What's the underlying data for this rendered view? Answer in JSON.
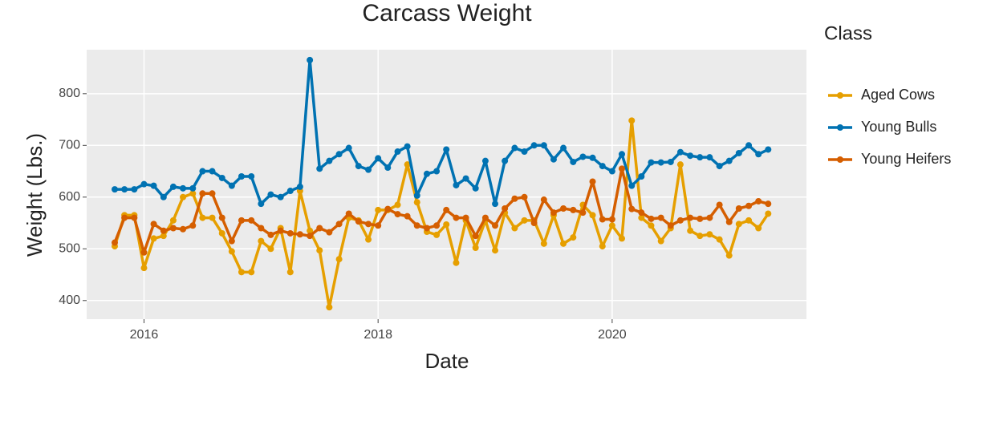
{
  "chart_data": {
    "type": "line",
    "title": "Carcass Weight",
    "x_label": "Date",
    "y_label": "Weight (Lbs.)",
    "legend_title": "Class",
    "legend": "right",
    "grid": true,
    "xlim": [
      2015.51,
      2021.66
    ],
    "xticks": [
      2016,
      2018,
      2020
    ],
    "ylim": [
      364,
      885
    ],
    "yticks": [
      400,
      500,
      600,
      700,
      800
    ],
    "x": [
      2015.75,
      2015.833,
      2015.917,
      2016,
      2016.083,
      2016.167,
      2016.25,
      2016.333,
      2016.417,
      2016.5,
      2016.583,
      2016.667,
      2016.75,
      2016.833,
      2016.917,
      2017,
      2017.083,
      2017.167,
      2017.25,
      2017.333,
      2017.417,
      2017.5,
      2017.583,
      2017.667,
      2017.75,
      2017.833,
      2017.917,
      2018,
      2018.083,
      2018.167,
      2018.25,
      2018.333,
      2018.417,
      2018.5,
      2018.583,
      2018.667,
      2018.75,
      2018.833,
      2018.917,
      2019,
      2019.083,
      2019.167,
      2019.25,
      2019.333,
      2019.417,
      2019.5,
      2019.583,
      2019.667,
      2019.75,
      2019.833,
      2019.917,
      2020,
      2020.083,
      2020.167,
      2020.25,
      2020.333,
      2020.417,
      2020.5,
      2020.583,
      2020.667,
      2020.75,
      2020.833,
      2020.917,
      2021,
      2021.083,
      2021.167,
      2021.25,
      2021.333
    ],
    "series": [
      {
        "name": "Aged Cows",
        "color": "#E69F00",
        "values": [
          505,
          565,
          565,
          463,
          520,
          525,
          555,
          600,
          607,
          560,
          560,
          530,
          495,
          455,
          455,
          515,
          500,
          540,
          455,
          612,
          535,
          497,
          387,
          480,
          560,
          555,
          518,
          575,
          575,
          585,
          663,
          590,
          533,
          527,
          547,
          473,
          555,
          502,
          555,
          497,
          570,
          540,
          555,
          555,
          510,
          565,
          510,
          522,
          585,
          565,
          505,
          545,
          520,
          748,
          560,
          545,
          515,
          540,
          663,
          535,
          525,
          528,
          518,
          487,
          548,
          555,
          540,
          568
        ]
      },
      {
        "name": "Young Bulls",
        "color": "#0072B2",
        "values": [
          615,
          615,
          615,
          625,
          622,
          600,
          620,
          617,
          617,
          650,
          650,
          637,
          622,
          640,
          640,
          587,
          605,
          600,
          612,
          620,
          865,
          655,
          670,
          683,
          695,
          660,
          653,
          675,
          657,
          688,
          698,
          603,
          645,
          650,
          692,
          623,
          636,
          617,
          670,
          587,
          670,
          695,
          688,
          700,
          700,
          673,
          695,
          668,
          678,
          676,
          660,
          650,
          683,
          622,
          640,
          667,
          667,
          668,
          687,
          680,
          677,
          677,
          660,
          670,
          685,
          700,
          683,
          692
        ]
      },
      {
        "name": "Young Heifers",
        "color": "#D55E00",
        "values": [
          512,
          560,
          560,
          493,
          548,
          535,
          540,
          538,
          545,
          607,
          607,
          560,
          515,
          555,
          555,
          540,
          527,
          535,
          530,
          528,
          525,
          540,
          532,
          548,
          568,
          553,
          548,
          545,
          577,
          567,
          563,
          545,
          540,
          545,
          575,
          560,
          560,
          525,
          560,
          545,
          578,
          597,
          600,
          550,
          595,
          570,
          578,
          575,
          570,
          630,
          557,
          557,
          655,
          577,
          570,
          558,
          560,
          545,
          555,
          560,
          558,
          560,
          585,
          552,
          578,
          583,
          592,
          587
        ]
      }
    ]
  }
}
